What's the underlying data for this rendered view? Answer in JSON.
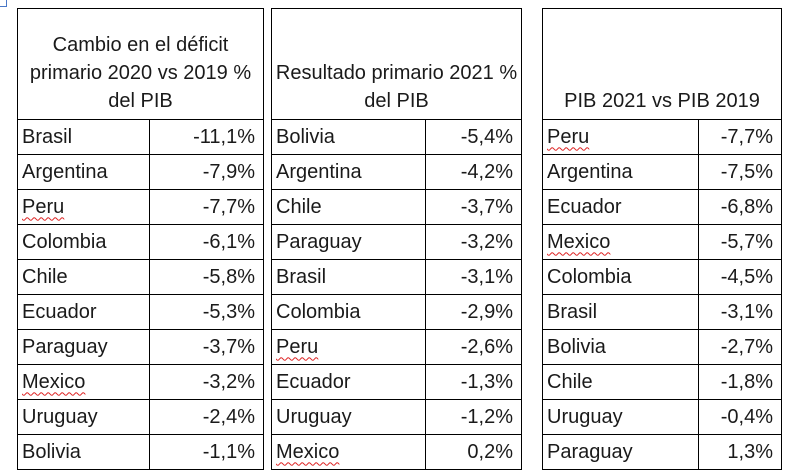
{
  "tables": [
    {
      "header": "Cambio en el déficit primario 2020  vs 2019 % del PIB",
      "rows": [
        {
          "country": "Brasil",
          "value": "-11,1%"
        },
        {
          "country": "Argentina",
          "value": "-7,9%"
        },
        {
          "country": "Peru",
          "value": "-7,7%",
          "spell": true
        },
        {
          "country": "Colombia",
          "value": "-6,1%"
        },
        {
          "country": "Chile",
          "value": "-5,8%"
        },
        {
          "country": "Ecuador",
          "value": "-5,3%"
        },
        {
          "country": "Paraguay",
          "value": "-3,7%"
        },
        {
          "country": "Mexico",
          "value": "-3,2%",
          "spell": true
        },
        {
          "country": "Uruguay",
          "value": "-2,4%"
        },
        {
          "country": "Bolivia",
          "value": "-1,1%"
        }
      ]
    },
    {
      "header": "Resultado primario 2021  % del PIB",
      "rows": [
        {
          "country": "Bolivia",
          "value": "-5,4%"
        },
        {
          "country": "Argentina",
          "value": "-4,2%"
        },
        {
          "country": "Chile",
          "value": "-3,7%"
        },
        {
          "country": "Paraguay",
          "value": "-3,2%"
        },
        {
          "country": "Brasil",
          "value": "-3,1%"
        },
        {
          "country": "Colombia",
          "value": "-2,9%"
        },
        {
          "country": "Peru",
          "value": "-2,6%",
          "spell": true
        },
        {
          "country": "Ecuador",
          "value": "-1,3%"
        },
        {
          "country": "Uruguay",
          "value": "-1,2%"
        },
        {
          "country": "Mexico",
          "value": "0,2%",
          "spell": true
        }
      ]
    },
    {
      "header": "PIB 2021  vs PIB 2019",
      "rows": [
        {
          "country": "Peru",
          "value": "-7,7%",
          "spell": true
        },
        {
          "country": "Argentina",
          "value": "-7,5%"
        },
        {
          "country": "Ecuador",
          "value": "-6,8%"
        },
        {
          "country": "Mexico",
          "value": "-5,7%",
          "spell": true
        },
        {
          "country": "Colombia",
          "value": "-4,5%"
        },
        {
          "country": "Brasil",
          "value": "-3,1%"
        },
        {
          "country": "Bolivia",
          "value": "-2,7%"
        },
        {
          "country": "Chile",
          "value": "-1,8%"
        },
        {
          "country": "Uruguay",
          "value": "-0,4%"
        },
        {
          "country": "Paraguay",
          "value": "1,3%"
        }
      ]
    }
  ]
}
